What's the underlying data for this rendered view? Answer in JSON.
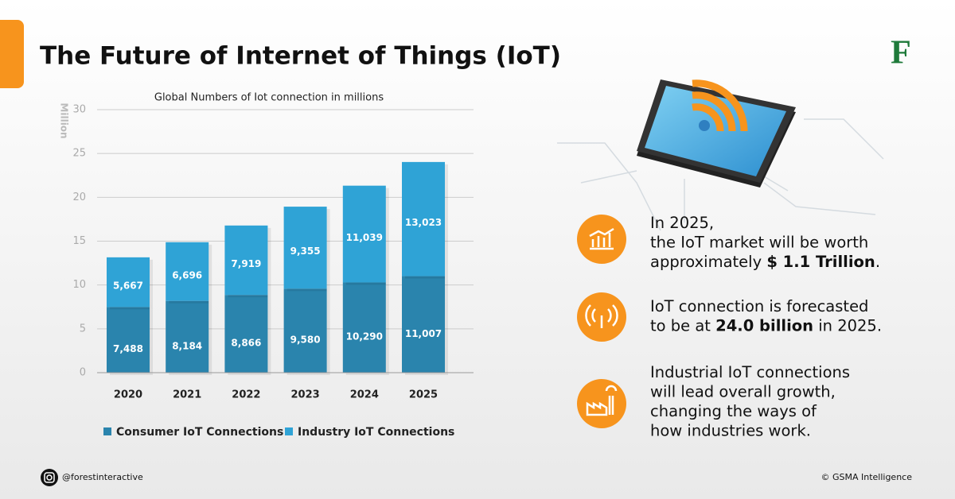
{
  "title": "The Future of Internet of Things (IoT)",
  "logo": "F",
  "chart_data": {
    "type": "stacked-bar",
    "title": "Global Numbers of Iot connection in millions",
    "y_label": "Million",
    "categories": [
      "2020",
      "2021",
      "2022",
      "2023",
      "2024",
      "2025"
    ],
    "series": [
      {
        "name": "Consumer IoT Connections",
        "color": "#2a84ad",
        "values": [
          7.488,
          8.184,
          8.866,
          9.58,
          10.29,
          11.007
        ],
        "value_labels": [
          "7,488",
          "8,184",
          "8,866",
          "9,580",
          "10,290",
          "11,007"
        ]
      },
      {
        "name": "Industry IoT Connections",
        "color": "#2fa3d6",
        "values": [
          5.667,
          6.696,
          7.919,
          9.355,
          11.039,
          13.023
        ],
        "value_labels": [
          "5,667",
          "6,696",
          "7,919",
          "9,355",
          "11,039",
          "13,023"
        ]
      }
    ],
    "ylim": [
      0,
      30
    ],
    "yticks": [
      0,
      5,
      10,
      15,
      20,
      25,
      30
    ],
    "grid": true
  },
  "facts": [
    [
      [
        {
          "text": "In 2025,"
        }
      ],
      [
        {
          "text": "the IoT market will be worth"
        }
      ],
      [
        {
          "text": "approximately "
        },
        {
          "text": "$ 1.1 Trillion",
          "bold": true
        },
        {
          "text": "."
        }
      ]
    ],
    [
      [
        {
          "text": "IoT connection is forecasted"
        }
      ],
      [
        {
          "text": "to be at "
        },
        {
          "text": "24.0 billion",
          "bold": true
        },
        {
          "text": " in 2025."
        }
      ]
    ],
    [
      [
        {
          "text": "Industrial IoT connections"
        }
      ],
      [
        {
          "text": "will lead overall growth,"
        }
      ],
      [
        {
          "text": "changing the ways of"
        }
      ],
      [
        {
          "text": "how industries work."
        }
      ]
    ]
  ],
  "footer": {
    "social": "@forestinteractive",
    "source": "© GSMA Intelligence"
  }
}
